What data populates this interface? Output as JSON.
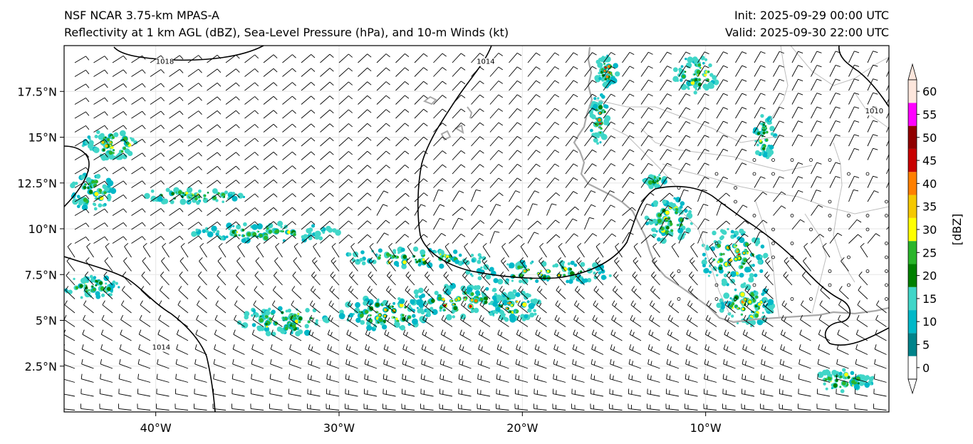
{
  "title": {
    "left_line1": "NSF NCAR 3.75-km MPAS-A",
    "left_line2": "Reflectivity at 1 km AGL (dBZ), Sea-Level Pressure (hPa), and 10-m Winds (kt)",
    "right_line1": "Init: 2025-09-29 00:00 UTC",
    "right_line2": "Valid: 2025-09-30 22:00 UTC"
  },
  "map": {
    "lon_range": [
      -45,
      0
    ],
    "lat_range": [
      0,
      20
    ],
    "lon_ticks": [
      {
        "value": -40,
        "label": "40°W"
      },
      {
        "value": -30,
        "label": "30°W"
      },
      {
        "value": -20,
        "label": "20°W"
      },
      {
        "value": -10,
        "label": "10°W"
      }
    ],
    "lat_ticks": [
      {
        "value": 2.5,
        "label": "2.5°N"
      },
      {
        "value": 5,
        "label": "5°N"
      },
      {
        "value": 7.5,
        "label": "7.5°N"
      },
      {
        "value": 10,
        "label": "10°N"
      },
      {
        "value": 12.5,
        "label": "12.5°N"
      },
      {
        "value": 15,
        "label": "15°N"
      },
      {
        "value": 17.5,
        "label": "17.5°N"
      }
    ],
    "isobar_labels": [
      {
        "text": "1018",
        "lon": -39.5,
        "lat": 19.0
      },
      {
        "text": "1014",
        "lon": -22.0,
        "lat": 19.0
      },
      {
        "text": "1010",
        "lon": -0.8,
        "lat": 16.3
      },
      {
        "text": "1014",
        "lon": -39.7,
        "lat": 3.4
      }
    ],
    "colors": {
      "coast": "#a8a8a8",
      "border": "#bdbdbd",
      "isobar": "#000000",
      "grid": "#e6e6e6",
      "barb": "#000000"
    },
    "reflectivity_clusters": [
      {
        "lon": -42.4,
        "lat": 14.6,
        "rx": 1.6,
        "ry": 0.8,
        "max": 45
      },
      {
        "lon": -43.5,
        "lat": 12.0,
        "rx": 1.2,
        "ry": 1.0,
        "max": 15
      },
      {
        "lon": -15.4,
        "lat": 18.6,
        "rx": 0.6,
        "ry": 0.9,
        "max": 45
      },
      {
        "lon": -15.8,
        "lat": 16.0,
        "rx": 0.5,
        "ry": 1.4,
        "max": 40
      },
      {
        "lon": -8.5,
        "lat": 8.5,
        "rx": 1.8,
        "ry": 1.6,
        "max": 40
      },
      {
        "lon": -7.8,
        "lat": 5.8,
        "rx": 1.5,
        "ry": 1.2,
        "max": 40
      },
      {
        "lon": -10.5,
        "lat": 18.4,
        "rx": 1.2,
        "ry": 1.0,
        "max": 20
      },
      {
        "lon": -23.5,
        "lat": 6.0,
        "rx": 3.0,
        "ry": 0.9,
        "max": 40
      },
      {
        "lon": -20.5,
        "lat": 5.8,
        "rx": 1.5,
        "ry": 0.8,
        "max": 40
      },
      {
        "lon": -27.5,
        "lat": 5.4,
        "rx": 2.5,
        "ry": 0.9,
        "max": 30
      },
      {
        "lon": -33.0,
        "lat": 5.0,
        "rx": 2.5,
        "ry": 0.8,
        "max": 25
      },
      {
        "lon": -19.0,
        "lat": 7.6,
        "rx": 4.0,
        "ry": 0.6,
        "max": 35
      },
      {
        "lon": -26.0,
        "lat": 8.4,
        "rx": 4.0,
        "ry": 0.5,
        "max": 20
      },
      {
        "lon": -34.0,
        "lat": 9.8,
        "rx": 4.0,
        "ry": 0.5,
        "max": 15
      },
      {
        "lon": -38.0,
        "lat": 11.8,
        "rx": 3.0,
        "ry": 0.4,
        "max": 15
      },
      {
        "lon": -43.5,
        "lat": 6.8,
        "rx": 1.5,
        "ry": 0.6,
        "max": 20
      },
      {
        "lon": -12.0,
        "lat": 10.5,
        "rx": 1.3,
        "ry": 1.2,
        "max": 25
      },
      {
        "lon": -12.8,
        "lat": 12.6,
        "rx": 0.6,
        "ry": 0.4,
        "max": 15
      },
      {
        "lon": -2.5,
        "lat": 1.7,
        "rx": 1.7,
        "ry": 0.6,
        "max": 15
      },
      {
        "lon": -6.8,
        "lat": 15.0,
        "rx": 0.6,
        "ry": 1.2,
        "max": 15
      }
    ]
  },
  "colorbar": {
    "unit_label": "[dBZ]",
    "levels": [
      0,
      5,
      10,
      15,
      20,
      25,
      30,
      35,
      40,
      45,
      50,
      55,
      60
    ],
    "colors": [
      "#ffffff",
      "#00838a",
      "#00b8c8",
      "#40d6c8",
      "#008000",
      "#2ab52a",
      "#ffff00",
      "#f5c800",
      "#ff7f00",
      "#c80000",
      "#900000",
      "#ff00ff",
      "#fde6dc"
    ]
  }
}
